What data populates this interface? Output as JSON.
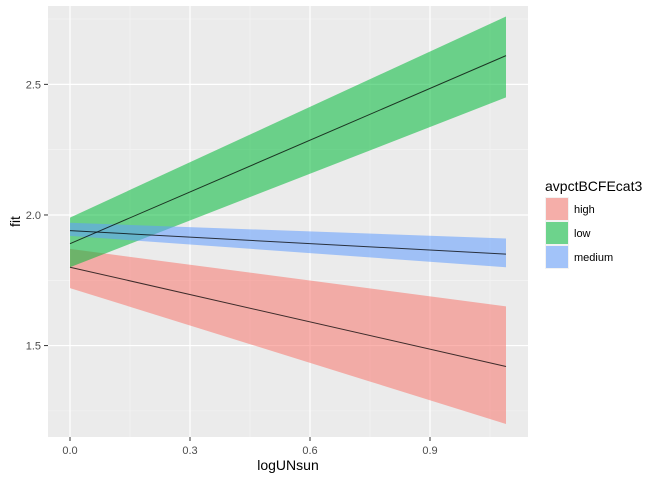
{
  "chart_data": {
    "type": "line",
    "title": "",
    "xlabel": "logUNsun",
    "ylabel": "fit",
    "xlim": [
      -0.055,
      1.145
    ],
    "ylim": [
      1.15,
      2.8
    ],
    "xticks": [
      0.0,
      0.3,
      0.6,
      0.9
    ],
    "xtick_labels": [
      "0.0",
      "0.3",
      "0.6",
      "0.9"
    ],
    "yticks": [
      1.5,
      2.0,
      2.5
    ],
    "ytick_labels": [
      "1.5",
      "2.0",
      "2.5"
    ],
    "grid": true,
    "legend": {
      "title": "avpctBCFEcat3",
      "position": "right"
    },
    "series": [
      {
        "name": "high",
        "color": "#f8766d",
        "x": [
          0.0,
          1.09
        ],
        "fit": [
          1.8,
          1.42
        ],
        "lower": [
          1.72,
          1.2
        ],
        "upper": [
          1.87,
          1.65
        ]
      },
      {
        "name": "low",
        "color": "#00ba38",
        "x": [
          0.0,
          1.09
        ],
        "fit": [
          1.89,
          2.61
        ],
        "lower": [
          1.8,
          2.45
        ],
        "upper": [
          1.99,
          2.76
        ]
      },
      {
        "name": "medium",
        "color": "#619cff",
        "x": [
          0.0,
          1.09
        ],
        "fit": [
          1.94,
          1.85
        ],
        "lower": [
          1.92,
          1.8
        ],
        "upper": [
          1.97,
          1.91
        ]
      }
    ]
  }
}
